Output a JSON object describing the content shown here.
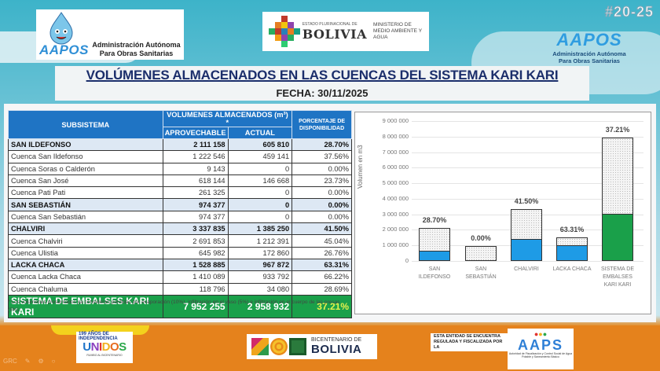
{
  "header": {
    "left_logo": {
      "brand": "AAPOS",
      "line1": "Administración Autónoma",
      "line2": "Para Obras Sanitarias"
    },
    "gov_logo": {
      "small": "ESTADO PLURINACIONAL DE",
      "big": "BOLIVIA",
      "ministry_line1": "MINISTERIO DE",
      "ministry_line2": "MEDIO AMBIENTE Y AGUA"
    },
    "issue_number": "#20-25",
    "right_logo": {
      "brand": "AAPOS",
      "line1": "Administración Autónoma",
      "line2": "Para Obras Sanitarias"
    }
  },
  "title": "VOLÚMENES ALMACENADOS EN LAS CUENCAS DEL SISTEMA KARI KARI",
  "date": "FECHA: 30/11/2025",
  "table": {
    "headers": {
      "subsistema": "SUBSISTEMA",
      "volumes": "VOLUMENES ALMACENADOS (m³) *",
      "aprovechable": "APROVECHABLE",
      "actual": "ACTUAL",
      "porcentaje": "PORCENTAJE DE DISPONIBILIDAD"
    },
    "rows": [
      {
        "name": "SAN ILDEFONSO",
        "aprovechable": "2 111 158",
        "actual": "605 810",
        "pct": "28.70%",
        "type": "group"
      },
      {
        "name": "Cuenca San Ildefonso",
        "aprovechable": "1 222 546",
        "actual": "459 141",
        "pct": "37.56%",
        "type": "item"
      },
      {
        "name": "Cuenca Soras o Calderón",
        "aprovechable": "9 143",
        "actual": "0",
        "pct": "0.00%",
        "type": "item"
      },
      {
        "name": "Cuenca San José",
        "aprovechable": "618 144",
        "actual": "146 668",
        "pct": "23.73%",
        "type": "item"
      },
      {
        "name": "Cuenca Pati Pati",
        "aprovechable": "261 325",
        "actual": "0",
        "pct": "0.00%",
        "type": "item"
      },
      {
        "name": "SAN SEBASTIÁN",
        "aprovechable": "974 377",
        "actual": "0",
        "pct": "0.00%",
        "type": "group"
      },
      {
        "name": "Cuenca San Sebastián",
        "aprovechable": "974 377",
        "actual": "0",
        "pct": "0.00%",
        "type": "item"
      },
      {
        "name": "CHALVIRI",
        "aprovechable": "3 337 835",
        "actual": "1 385 250",
        "pct": "41.50%",
        "type": "group"
      },
      {
        "name": "Cuenca Chalviri",
        "aprovechable": "2 691 853",
        "actual": "1 212 391",
        "pct": "45.04%",
        "type": "item"
      },
      {
        "name": "Cuenca Ulistia",
        "aprovechable": "645 982",
        "actual": "172 860",
        "pct": "26.76%",
        "type": "item"
      },
      {
        "name": "LACKA CHACA",
        "aprovechable": "1 528 885",
        "actual": "967 872",
        "pct": "63.31%",
        "type": "group"
      },
      {
        "name": "Cuenca Lacka Chaca",
        "aprovechable": "1 410 089",
        "actual": "933 792",
        "pct": "66.22%",
        "type": "item"
      },
      {
        "name": "Cuenca Chaluma",
        "aprovechable": "118 796",
        "actual": "34 080",
        "pct": "28.69%",
        "type": "item"
      }
    ],
    "total": {
      "name": "SISTEMA DE EMBALSES KARI KARI",
      "aprovechable": "7 952 255",
      "actual": "2 958 932",
      "pct": "37.21%"
    },
    "footnote": "* Los volúmenes presentados ya consideran perdidas por evaporación (10%), infiltración en el vaso (5%) e infiltración en el cuerpo de las presas (5%)."
  },
  "chart_data": {
    "type": "bar",
    "title": "",
    "xlabel": "",
    "ylabel": "Volumen en m3",
    "ylim": [
      0,
      9000000
    ],
    "yticks": [
      "0",
      "1 000 000",
      "2 000 000",
      "3 000 000",
      "4 000 000",
      "5 000 000",
      "6 000 000",
      "7 000 000",
      "8 000 000",
      "9 000 000"
    ],
    "grid": true,
    "stacked_overlay": true,
    "categories": [
      "SAN ILDEFONSO",
      "SAN SEBASTIÁN",
      "CHALVIRI",
      "LACKA CHACA",
      "SISTEMA DE EMBALSES KARI KARI"
    ],
    "category_label_lines": [
      [
        "SAN",
        "ILDEFONSO"
      ],
      [
        "SAN",
        "SEBASTIÁN"
      ],
      [
        "CHALVIRI"
      ],
      [
        "LACKA CHACA"
      ],
      [
        "SISTEMA DE",
        "EMBALSES",
        "KARI KARI"
      ]
    ],
    "series": [
      {
        "name": "Aprovechable",
        "values": [
          2111158,
          974377,
          3337835,
          1528885,
          7952255
        ],
        "style": "dotted-pattern"
      },
      {
        "name": "Actual",
        "values": [
          605810,
          0,
          1385250,
          967872,
          2958932
        ],
        "colors": [
          "#1e9be6",
          "#1e9be6",
          "#1e9be6",
          "#1e9be6",
          "#1aa04a"
        ]
      }
    ],
    "data_labels": [
      "28.70%",
      "0.00%",
      "41.50%",
      "63.31%",
      "37.21%"
    ]
  },
  "footer": {
    "unidos": {
      "year": "199 AÑOS DE INDEPENDENCIA",
      "word": "UNIDOS",
      "sub": "RUMBO AL BICENTENARIO"
    },
    "bicentenario": {
      "small": "BICENTENARIO DE",
      "big": "BOLIVIA"
    },
    "regulation_text": "ESTA ENTIDAD SE ENCUENTRA REGULADA Y FISCALIZADA POR LA",
    "aaps": {
      "word": "AAPS",
      "sub": "Autoridad de Fiscalización y Control Social de Agua Potable y Saneamiento Básico"
    },
    "toolbar_label": "GRC"
  },
  "colors": {
    "header_blue": "#1f74c4",
    "group_row": "#dde8f4",
    "total_green": "#1aa04a",
    "total_pct_yellow": "#e6f24d",
    "bar_blue": "#1e9be6",
    "bar_green": "#1aa04a",
    "title_navy": "#1b2e6b",
    "footer_orange": "#e5821c"
  }
}
